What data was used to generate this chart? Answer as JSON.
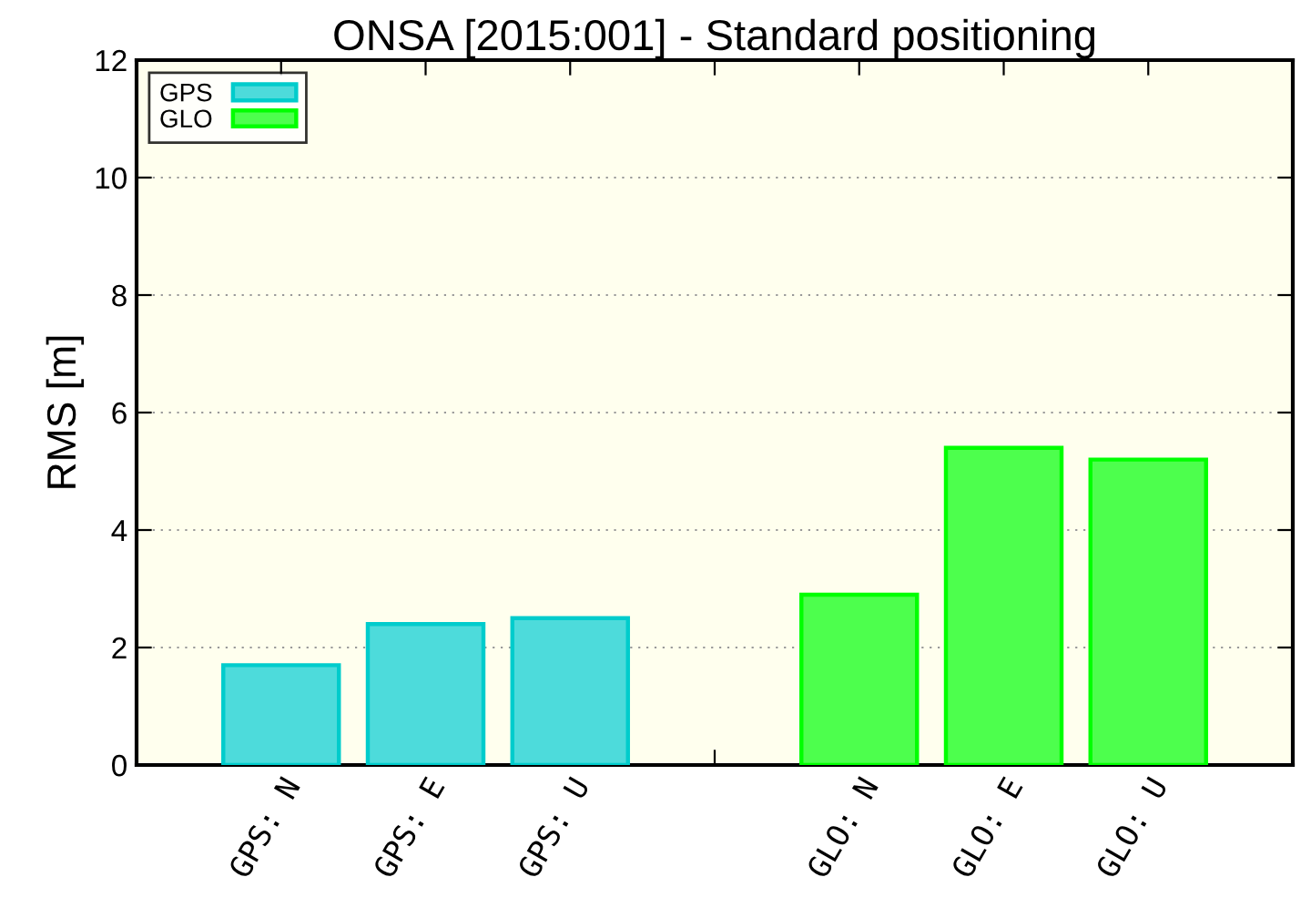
{
  "chart_data": {
    "type": "bar",
    "title": "ONSA [2015:001] - Standard positioning",
    "ylabel": "RMS [m]",
    "categories": [
      "GPS: N",
      "GPS: E",
      "GPS: U",
      null,
      "GLO: N",
      "GLO: E",
      "GLO: U"
    ],
    "series": [
      {
        "name": "GPS",
        "color": "#00cccc",
        "values": [
          1.7,
          2.4,
          2.5,
          null,
          null,
          null,
          null
        ]
      },
      {
        "name": "GLO",
        "color": "#00ff00",
        "values": [
          null,
          null,
          null,
          null,
          2.9,
          5.4,
          5.2
        ]
      }
    ],
    "ylim": [
      0,
      12
    ],
    "yticks": [
      0,
      2,
      4,
      6,
      8,
      10,
      12
    ],
    "grid": "y",
    "legend": "top left"
  }
}
